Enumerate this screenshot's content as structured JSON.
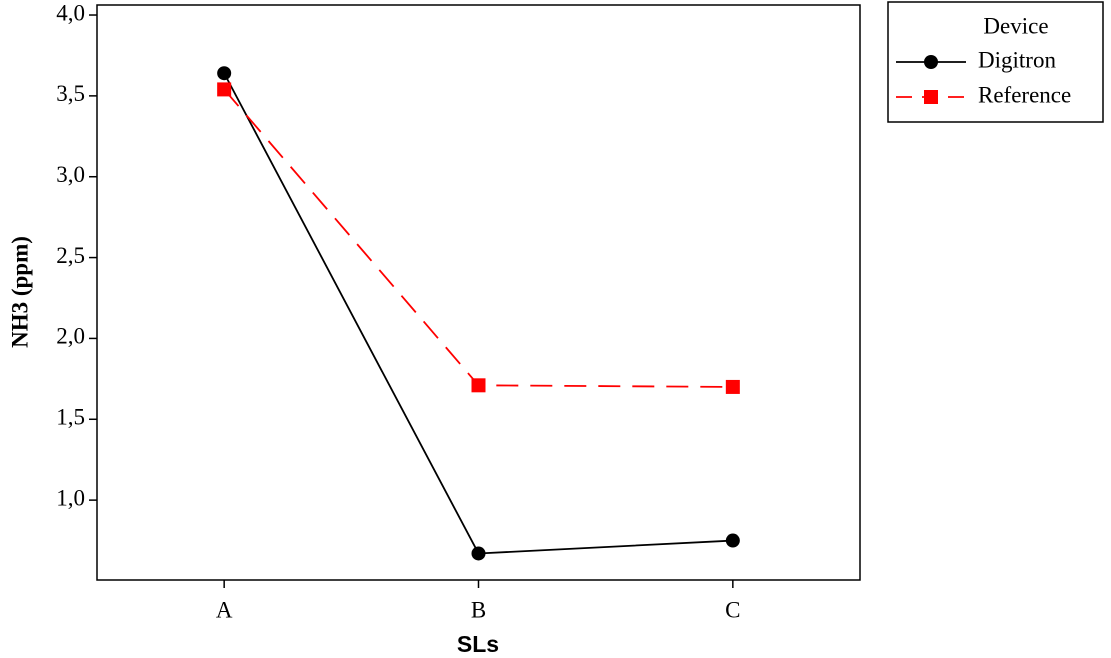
{
  "chart_data": {
    "type": "line",
    "xlabel": "SLs",
    "ylabel": "NH3 (ppm)",
    "categories": [
      "A",
      "B",
      "C"
    ],
    "series": [
      {
        "name": "Digitron",
        "color": "#000000",
        "linestyle": "solid",
        "marker": "circle",
        "values": [
          3.64,
          0.67,
          0.75
        ]
      },
      {
        "name": "Reference",
        "color": "#ff0000",
        "linestyle": "dashed",
        "marker": "square",
        "values": [
          3.54,
          1.71,
          1.7
        ]
      }
    ],
    "legend_title": "Device",
    "ylim": [
      0.506,
      4.062
    ],
    "yticks": [
      {
        "value": 1.0,
        "label": "1,0"
      },
      {
        "value": 1.5,
        "label": "1,5"
      },
      {
        "value": 2.0,
        "label": "2,0"
      },
      {
        "value": 2.5,
        "label": "2,5"
      },
      {
        "value": 3.0,
        "label": "3,0"
      },
      {
        "value": 3.5,
        "label": "3,5"
      },
      {
        "value": 4.0,
        "label": "4,0"
      }
    ]
  }
}
